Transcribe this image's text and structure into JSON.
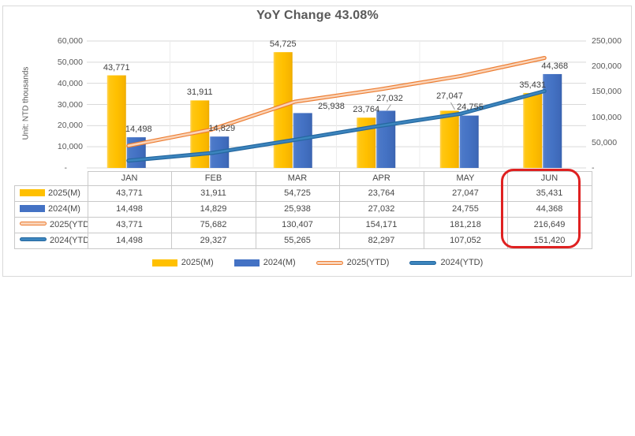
{
  "title": "YoY Change 43.08%",
  "y_axis_title": "Unit: NTD thousands",
  "chart_data": {
    "type": "combo-bar-line",
    "categories": [
      "JAN",
      "FEB",
      "MAR",
      "APR",
      "MAY",
      "JUN"
    ],
    "series": [
      {
        "name": "2025(M)",
        "type": "bar",
        "axis": "left",
        "color": "#FFC000",
        "values": [
          43771,
          31911,
          54725,
          23764,
          27047,
          35431
        ]
      },
      {
        "name": "2024(M)",
        "type": "bar",
        "axis": "left",
        "color": "#4472C4",
        "values": [
          14498,
          14829,
          25938,
          27032,
          24755,
          44368
        ]
      },
      {
        "name": "2025(YTD)",
        "type": "line",
        "axis": "right",
        "color": "#ED7D31",
        "inner": "#F9D3B8",
        "values": [
          43771,
          75682,
          130407,
          154171,
          181218,
          216649
        ]
      },
      {
        "name": "2024(YTD)",
        "type": "line",
        "axis": "right",
        "color": "#2568A0",
        "inner": "#3C85BE",
        "values": [
          14498,
          29327,
          55265,
          82297,
          107052,
          151420
        ]
      }
    ],
    "left_axis": {
      "title": "Unit: NTD thousands",
      "min": 0,
      "max": 60000,
      "ticks": [
        "60,000",
        "50,000",
        "40,000",
        "30,000",
        "20,000",
        "10,000",
        "-"
      ]
    },
    "right_axis": {
      "min": 0,
      "max": 250000,
      "ticks": [
        "250,000",
        "200,000",
        "150,000",
        "100,000",
        "50,000",
        "-"
      ]
    },
    "legend_position": "bottom",
    "gridlines": true,
    "highlighted_column": "JUN",
    "highlight_color": "#DF2121",
    "table_corner_label": ""
  }
}
